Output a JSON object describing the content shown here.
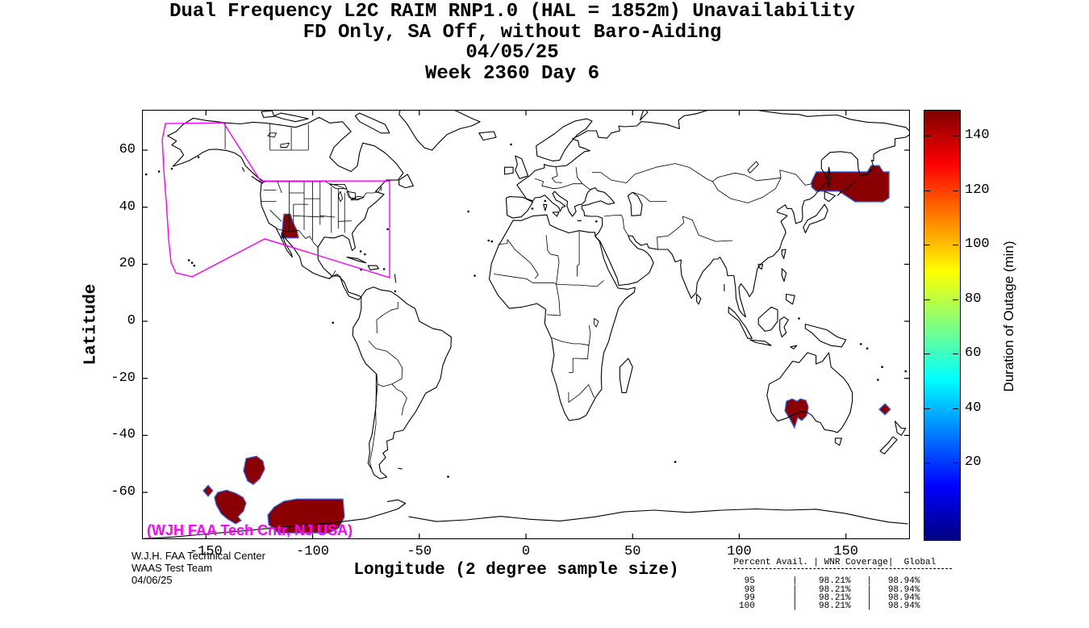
{
  "annotations": {
    "map_credit": "(WJH FAA Tech Cntr, NJ USA)",
    "credit_lines": [
      "W.J.H. FAA Technical Center",
      "WAAS Test Team",
      "04/06/25"
    ]
  },
  "chart_data": {
    "type": "heatmap",
    "title": "Dual Frequency L2C RAIM RNP1.0 (HAL = 1852m) Unavailability",
    "subtitle": "FD Only, SA Off, without Baro-Aiding",
    "date": "04/05/25",
    "week_day": "Week 2360 Day 6",
    "xlabel": "Longitude (2 degree sample size)",
    "ylabel": "Latitude",
    "xlim": [
      -180,
      180
    ],
    "ylim": [
      -76.4,
      74.2
    ],
    "xticks": [
      -150,
      -100,
      -50,
      0,
      50,
      100,
      150
    ],
    "yticks": [
      60,
      40,
      20,
      0,
      -20,
      -40,
      -60
    ],
    "grid": false,
    "colorbar": {
      "label": "Duration of Outage (min)",
      "ticks": [
        20,
        40,
        60,
        80,
        100,
        120,
        140
      ],
      "range": [
        0,
        150
      ],
      "colormap": "jet",
      "gradient_stops_top_to_bottom": [
        "#7f0000",
        "#ff0000",
        "#ffff00",
        "#00ffff",
        "#0000ff",
        "#00007f"
      ]
    },
    "colors": {
      "outage_fill": "#8a0000",
      "outage_fringe": "#3366ee",
      "coastline": "#000000",
      "waas_boundary": "#ff00ff",
      "background": "#ffffff"
    },
    "outage_regions": [
      {
        "name": "sea-of-okhotsk-kamchatka",
        "approx_outage_min": 150,
        "points": [
          [
            133.9,
            49.0
          ],
          [
            136.1,
            52.4
          ],
          [
            160.0,
            52.4
          ],
          [
            161.8,
            54.6
          ],
          [
            165.6,
            54.6
          ],
          [
            167.5,
            52.4
          ],
          [
            170.2,
            52.4
          ],
          [
            170.2,
            43.3
          ],
          [
            167.5,
            41.9
          ],
          [
            154.3,
            41.9
          ],
          [
            146.7,
            45.6
          ],
          [
            136.1,
            45.6
          ],
          [
            133.9,
            47.0
          ]
        ]
      },
      {
        "name": "new-mexico-bell",
        "approx_outage_min": 150,
        "points": [
          [
            -113.4,
            37.6
          ],
          [
            -110.4,
            37.6
          ],
          [
            -109.3,
            34.8
          ],
          [
            -107.4,
            32.0
          ],
          [
            -106.6,
            29.2
          ],
          [
            -114.9,
            29.2
          ],
          [
            -114.2,
            32.0
          ],
          [
            -113.8,
            35.7
          ]
        ]
      },
      {
        "name": "south-australia",
        "approx_outage_min": 150,
        "points": [
          [
            122.1,
            -28.0
          ],
          [
            124.8,
            -27.2
          ],
          [
            127.1,
            -28.0
          ],
          [
            128.6,
            -27.2
          ],
          [
            131.2,
            -27.7
          ],
          [
            132.4,
            -30.0
          ],
          [
            131.6,
            -33.1
          ],
          [
            129.3,
            -34.8
          ],
          [
            127.4,
            -33.7
          ],
          [
            125.9,
            -37.4
          ],
          [
            123.7,
            -34.2
          ],
          [
            121.4,
            -31.4
          ]
        ]
      },
      {
        "name": "north-of-new-zealand-diamond",
        "approx_outage_min": 150,
        "points": [
          [
            168.3,
            -28.9
          ],
          [
            170.9,
            -30.9
          ],
          [
            168.3,
            -32.8
          ],
          [
            165.6,
            -30.9
          ]
        ]
      },
      {
        "name": "south-pacific-blob-1",
        "approx_outage_min": 150,
        "points": [
          [
            -131.2,
            -48.1
          ],
          [
            -126.3,
            -47.3
          ],
          [
            -123.3,
            -49.0
          ],
          [
            -122.5,
            -51.8
          ],
          [
            -124.8,
            -55.2
          ],
          [
            -127.8,
            -57.2
          ],
          [
            -130.5,
            -56.0
          ],
          [
            -132.4,
            -52.4
          ]
        ]
      },
      {
        "name": "south-pacific-diamond",
        "approx_outage_min": 150,
        "points": [
          [
            -149.0,
            -57.5
          ],
          [
            -146.8,
            -59.4
          ],
          [
            -149.0,
            -61.4
          ],
          [
            -151.3,
            -59.4
          ]
        ]
      },
      {
        "name": "south-pacific-blob-2",
        "approx_outage_min": 150,
        "points": [
          [
            -144.5,
            -60.0
          ],
          [
            -140.3,
            -59.2
          ],
          [
            -136.1,
            -60.3
          ],
          [
            -132.7,
            -61.7
          ],
          [
            -131.2,
            -63.7
          ],
          [
            -132.4,
            -66.5
          ],
          [
            -135.0,
            -68.5
          ],
          [
            -133.5,
            -69.9
          ],
          [
            -136.1,
            -71.0
          ],
          [
            -139.9,
            -69.3
          ],
          [
            -142.9,
            -67.4
          ],
          [
            -145.2,
            -64.3
          ],
          [
            -146.0,
            -61.7
          ]
        ]
      },
      {
        "name": "south-pacific-large",
        "approx_outage_min": 150,
        "points": [
          [
            -121.0,
            -67.9
          ],
          [
            -118.0,
            -65.1
          ],
          [
            -113.4,
            -63.1
          ],
          [
            -107.4,
            -62.3
          ],
          [
            -85.8,
            -62.3
          ],
          [
            -85.1,
            -68.5
          ],
          [
            -87.7,
            -72.5
          ],
          [
            -92.3,
            -74.2
          ],
          [
            -116.1,
            -74.2
          ],
          [
            -120.6,
            -71.3
          ]
        ]
      }
    ],
    "waas_coverage_boundary": {
      "points": [
        [
          -169.0,
          69.3
        ],
        [
          -141.8,
          69.6
        ],
        [
          -124.4,
          49.2
        ],
        [
          -63.9,
          49.2
        ],
        [
          -63.9,
          15.3
        ],
        [
          -122.5,
          28.9
        ],
        [
          -156.5,
          15.6
        ],
        [
          -164.1,
          17.0
        ],
        [
          -166.4,
          20.7
        ],
        [
          -167.5,
          28.6
        ],
        [
          -168.6,
          41.9
        ],
        [
          -169.7,
          52.4
        ],
        [
          -170.5,
          63.7
        ]
      ]
    },
    "stats_table": {
      "col_headers": [
        "Percent Avail.",
        "WNR Coverage",
        "Global"
      ],
      "rows": [
        [
          "95",
          "98.21%",
          "98.94%"
        ],
        [
          "98",
          "98.21%",
          "98.94%"
        ],
        [
          "99",
          "98.21%",
          "98.94%"
        ],
        [
          "100",
          "98.21%",
          "98.94%"
        ]
      ]
    }
  }
}
